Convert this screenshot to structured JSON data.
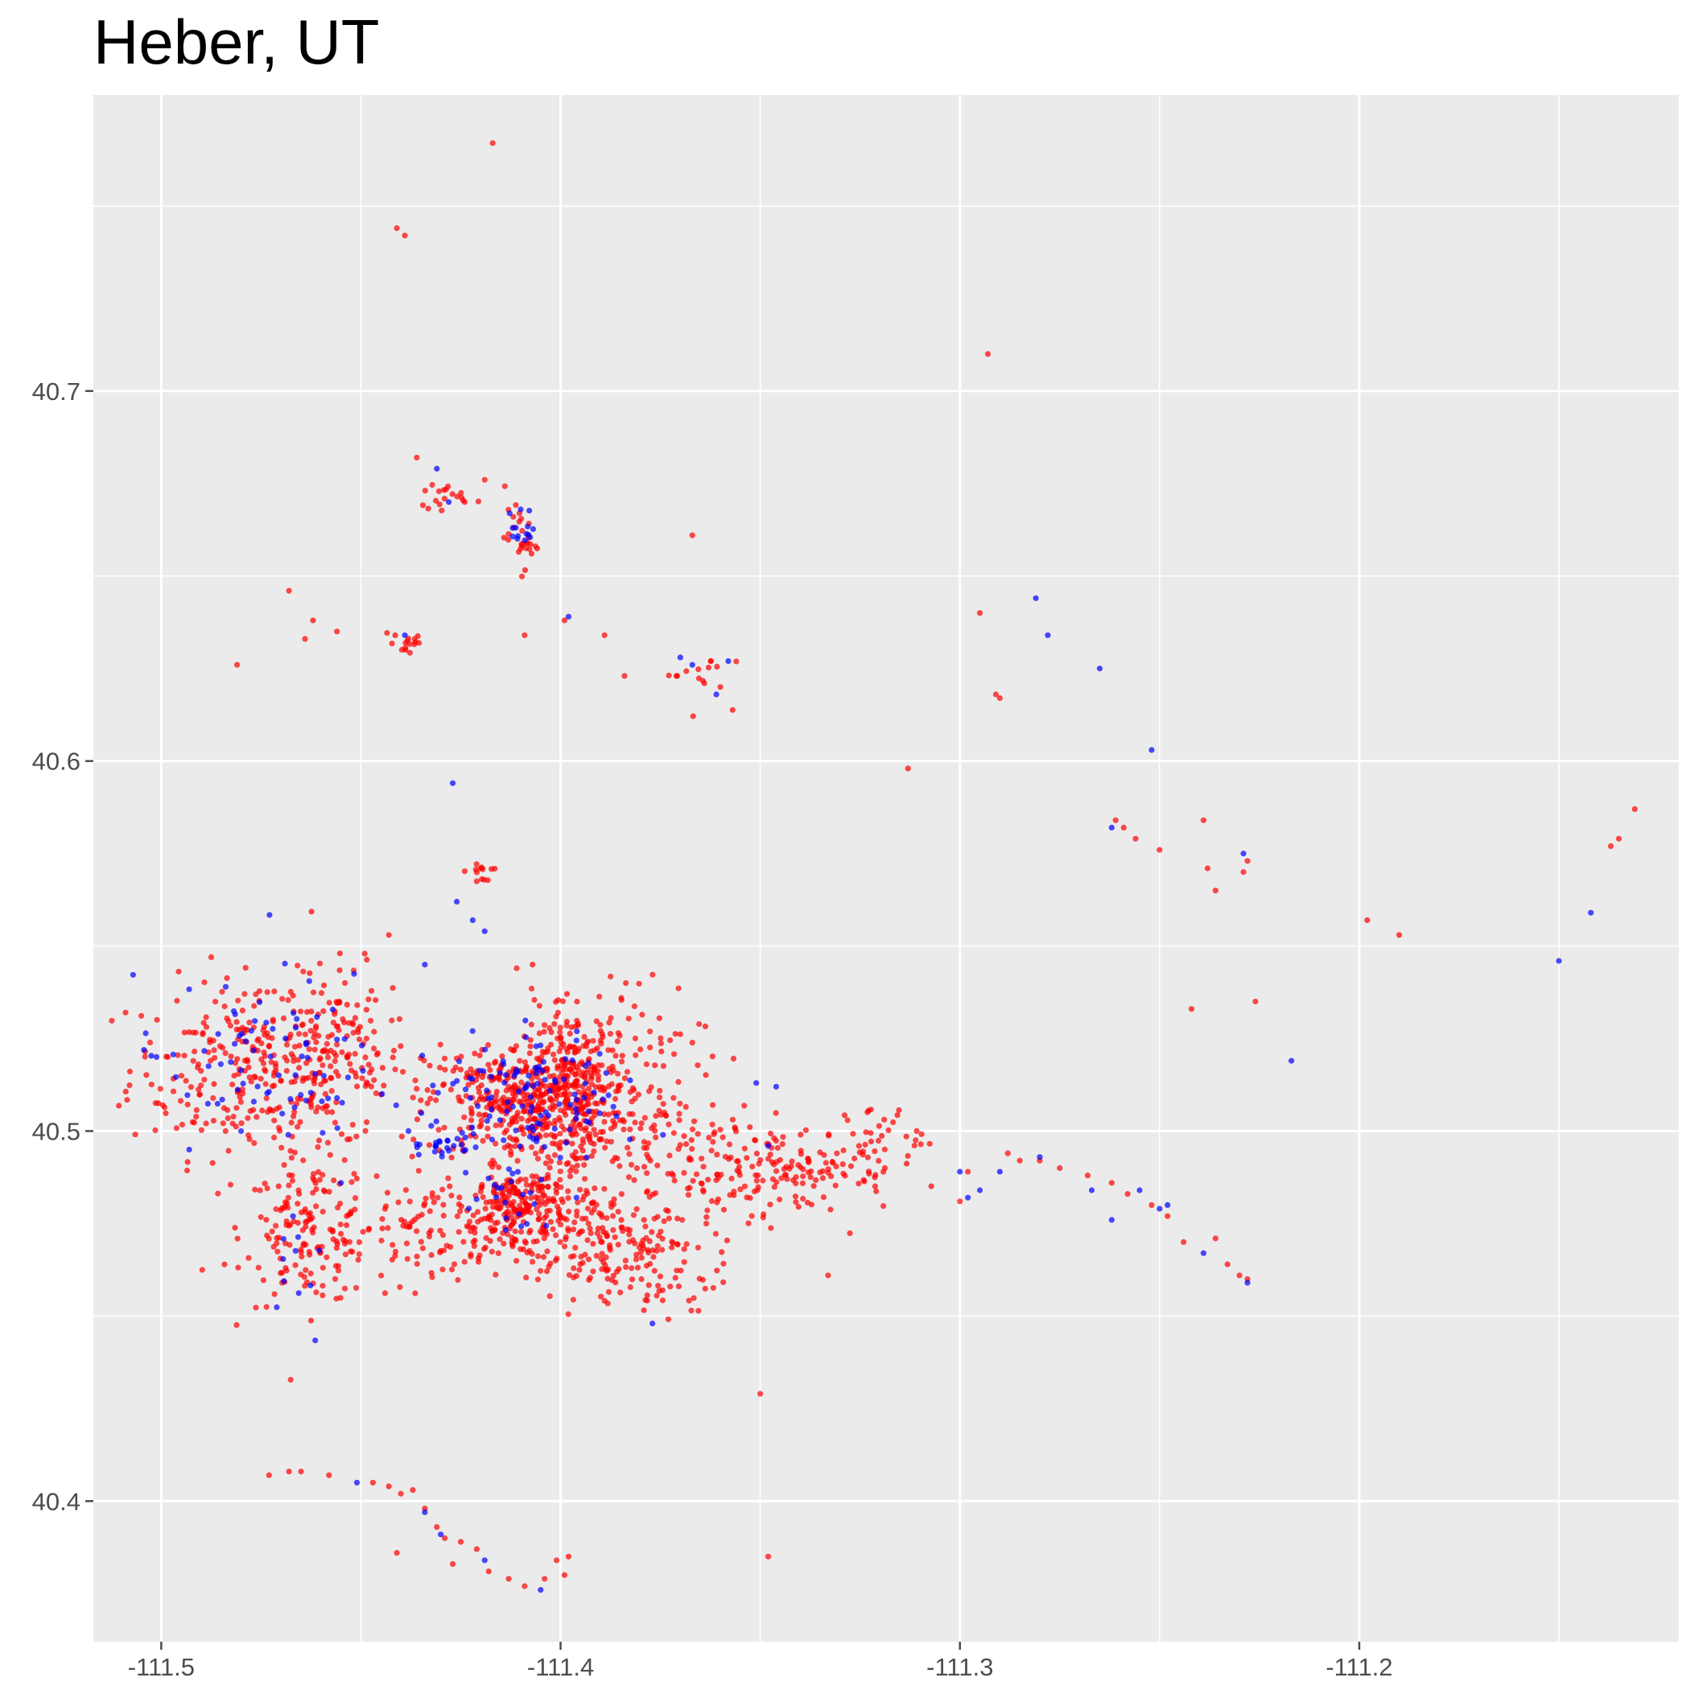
{
  "chart_data": {
    "type": "scatter",
    "title": "Heber, UT",
    "xlabel": "",
    "ylabel": "",
    "xlim": [
      -111.517,
      -111.12
    ],
    "ylim": [
      40.362,
      40.78
    ],
    "grid": true,
    "x_ticks": [
      -111.5,
      -111.4,
      -111.3,
      -111.2
    ],
    "x_tick_labels": [
      "-111.5",
      "-111.4",
      "-111.3",
      "-111.2"
    ],
    "y_ticks": [
      40.4,
      40.5,
      40.6,
      40.7
    ],
    "y_tick_labels": [
      "40.4",
      "40.5",
      "40.6",
      "40.7"
    ],
    "colors": {
      "panel": "#ebebeb",
      "grid": "#ffffff",
      "tick": "#4d4d4d",
      "red": "#ff0000",
      "blue": "#0000ff"
    },
    "series": [
      {
        "color": "#ff0000",
        "points": [
          [
            -111.417,
            40.767
          ],
          [
            -111.441,
            40.744
          ],
          [
            -111.439,
            40.742
          ],
          [
            -111.293,
            40.71
          ],
          [
            -111.436,
            40.682
          ],
          [
            -111.419,
            40.676
          ],
          [
            -111.367,
            40.661
          ],
          [
            -111.424,
            40.67
          ],
          [
            -111.468,
            40.646
          ],
          [
            -111.462,
            40.638
          ],
          [
            -111.456,
            40.635
          ],
          [
            -111.464,
            40.633
          ],
          [
            -111.481,
            40.626
          ],
          [
            -111.409,
            40.634
          ],
          [
            -111.399,
            40.638
          ],
          [
            -111.389,
            40.634
          ],
          [
            -111.384,
            40.623
          ],
          [
            -111.364,
            40.621
          ],
          [
            -111.36,
            40.62
          ],
          [
            -111.313,
            40.598
          ],
          [
            -111.295,
            40.64
          ],
          [
            -111.291,
            40.618
          ],
          [
            -111.29,
            40.617
          ],
          [
            -111.261,
            40.584
          ],
          [
            -111.259,
            40.582
          ],
          [
            -111.256,
            40.579
          ],
          [
            -111.25,
            40.576
          ],
          [
            -111.239,
            40.584
          ],
          [
            -111.238,
            40.571
          ],
          [
            -111.236,
            40.565
          ],
          [
            -111.229,
            40.57
          ],
          [
            -111.228,
            40.573
          ],
          [
            -111.226,
            40.535
          ],
          [
            -111.242,
            40.533
          ],
          [
            -111.198,
            40.557
          ],
          [
            -111.19,
            40.553
          ],
          [
            -111.131,
            40.587
          ],
          [
            -111.135,
            40.579
          ],
          [
            -111.137,
            40.577
          ],
          [
            -111.411,
            40.544
          ],
          [
            -111.407,
            40.545
          ],
          [
            -111.443,
            40.553
          ],
          [
            -111.454,
            40.54
          ],
          [
            -111.42,
            40.571
          ],
          [
            -111.3,
            40.481
          ],
          [
            -111.298,
            40.489
          ],
          [
            -111.288,
            40.494
          ],
          [
            -111.285,
            40.492
          ],
          [
            -111.28,
            40.492
          ],
          [
            -111.275,
            40.49
          ],
          [
            -111.268,
            40.488
          ],
          [
            -111.262,
            40.486
          ],
          [
            -111.258,
            40.483
          ],
          [
            -111.252,
            40.48
          ],
          [
            -111.248,
            40.477
          ],
          [
            -111.244,
            40.47
          ],
          [
            -111.236,
            40.471
          ],
          [
            -111.233,
            40.464
          ],
          [
            -111.23,
            40.461
          ],
          [
            -111.228,
            40.46
          ],
          [
            -111.35,
            40.429
          ],
          [
            -111.348,
            40.385
          ],
          [
            -111.333,
            40.461
          ],
          [
            -111.473,
            40.407
          ],
          [
            -111.468,
            40.408
          ],
          [
            -111.465,
            40.408
          ],
          [
            -111.458,
            40.407
          ],
          [
            -111.447,
            40.405
          ],
          [
            -111.443,
            40.404
          ],
          [
            -111.44,
            40.402
          ],
          [
            -111.437,
            40.403
          ],
          [
            -111.434,
            40.398
          ],
          [
            -111.431,
            40.393
          ],
          [
            -111.429,
            40.39
          ],
          [
            -111.425,
            40.389
          ],
          [
            -111.421,
            40.387
          ],
          [
            -111.418,
            40.381
          ],
          [
            -111.413,
            40.379
          ],
          [
            -111.409,
            40.377
          ],
          [
            -111.404,
            40.379
          ],
          [
            -111.401,
            40.384
          ],
          [
            -111.398,
            40.385
          ],
          [
            -111.441,
            40.386
          ],
          [
            -111.399,
            40.38
          ],
          [
            -111.427,
            40.383
          ]
        ]
      },
      {
        "color": "#0000ff",
        "points": [
          [
            -111.431,
            40.679
          ],
          [
            -111.428,
            40.67
          ],
          [
            -111.41,
            40.668
          ],
          [
            -111.412,
            40.663
          ],
          [
            -111.439,
            40.634
          ],
          [
            -111.398,
            40.639
          ],
          [
            -111.37,
            40.628
          ],
          [
            -111.367,
            40.626
          ],
          [
            -111.358,
            40.627
          ],
          [
            -111.361,
            40.618
          ],
          [
            -111.281,
            40.644
          ],
          [
            -111.278,
            40.634
          ],
          [
            -111.265,
            40.625
          ],
          [
            -111.252,
            40.603
          ],
          [
            -111.427,
            40.594
          ],
          [
            -111.262,
            40.582
          ],
          [
            -111.229,
            40.575
          ],
          [
            -111.217,
            40.519
          ],
          [
            -111.142,
            40.559
          ],
          [
            -111.15,
            40.546
          ],
          [
            -111.426,
            40.562
          ],
          [
            -111.422,
            40.557
          ],
          [
            -111.419,
            40.554
          ],
          [
            -111.434,
            40.545
          ],
          [
            -111.3,
            40.489
          ],
          [
            -111.298,
            40.482
          ],
          [
            -111.295,
            40.484
          ],
          [
            -111.29,
            40.489
          ],
          [
            -111.28,
            40.493
          ],
          [
            -111.267,
            40.484
          ],
          [
            -111.262,
            40.476
          ],
          [
            -111.255,
            40.484
          ],
          [
            -111.25,
            40.479
          ],
          [
            -111.248,
            40.48
          ],
          [
            -111.239,
            40.467
          ],
          [
            -111.228,
            40.459
          ],
          [
            -111.346,
            40.512
          ],
          [
            -111.351,
            40.513
          ],
          [
            -111.408,
            40.515
          ],
          [
            -111.43,
            40.391
          ],
          [
            -111.434,
            40.397
          ],
          [
            -111.419,
            40.384
          ],
          [
            -111.405,
            40.376
          ],
          [
            -111.451,
            40.405
          ],
          [
            -111.348,
            40.496
          ],
          [
            -111.386,
            40.504
          ],
          [
            -111.377,
            40.448
          ],
          [
            -111.396,
            40.482
          ],
          [
            -111.455,
            40.486
          ],
          [
            -111.467,
            40.477
          ],
          [
            -111.48,
            40.5
          ],
          [
            -111.493,
            40.495
          ]
        ]
      }
    ],
    "clusters": [
      {
        "color": "#ff0000",
        "count": 260,
        "center": [
          -111.478,
          40.517
        ],
        "spread": [
          0.015,
          0.012
        ]
      },
      {
        "color": "#ff0000",
        "count": 150,
        "center": [
          -111.458,
          40.52
        ],
        "spread": [
          0.01,
          0.012
        ]
      },
      {
        "color": "#ff0000",
        "count": 140,
        "center": [
          -111.463,
          40.473
        ],
        "spread": [
          0.008,
          0.01
        ]
      },
      {
        "color": "#ff0000",
        "count": 400,
        "center": [
          -111.41,
          40.508
        ],
        "spread": [
          0.012,
          0.008
        ]
      },
      {
        "color": "#ff0000",
        "count": 220,
        "center": [
          -111.397,
          40.513
        ],
        "spread": [
          0.006,
          0.01
        ]
      },
      {
        "color": "#ff0000",
        "count": 160,
        "center": [
          -111.41,
          40.48
        ],
        "spread": [
          0.006,
          0.005
        ]
      },
      {
        "color": "#ff0000",
        "count": 160,
        "center": [
          -111.39,
          40.472
        ],
        "spread": [
          0.014,
          0.008
        ]
      },
      {
        "color": "#ff0000",
        "count": 180,
        "center": [
          -111.43,
          40.473
        ],
        "spread": [
          0.018,
          0.007
        ]
      },
      {
        "color": "#ff0000",
        "count": 140,
        "center": [
          -111.37,
          40.494
        ],
        "spread": [
          0.015,
          0.01
        ]
      },
      {
        "color": "#ff0000",
        "count": 120,
        "center": [
          -111.34,
          40.49
        ],
        "spread": [
          0.012,
          0.006
        ]
      },
      {
        "color": "#ff0000",
        "count": 80,
        "center": [
          -111.383,
          40.52
        ],
        "spread": [
          0.01,
          0.012
        ]
      },
      {
        "color": "#ff0000",
        "count": 60,
        "center": [
          -111.378,
          40.462
        ],
        "spread": [
          0.01,
          0.007
        ]
      },
      {
        "color": "#ff0000",
        "count": 30,
        "center": [
          -111.32,
          40.499
        ],
        "spread": [
          0.005,
          0.004
        ]
      },
      {
        "color": "#ff0000",
        "count": 30,
        "center": [
          -111.41,
          40.66
        ],
        "spread": [
          0.002,
          0.004
        ]
      },
      {
        "color": "#ff0000",
        "count": 18,
        "center": [
          -111.429,
          40.671
        ],
        "spread": [
          0.003,
          0.002
        ]
      },
      {
        "color": "#ff0000",
        "count": 16,
        "center": [
          -111.439,
          40.632
        ],
        "spread": [
          0.003,
          0.002
        ]
      },
      {
        "color": "#ff0000",
        "count": 12,
        "center": [
          -111.42,
          40.57
        ],
        "spread": [
          0.002,
          0.002
        ]
      },
      {
        "color": "#ff0000",
        "count": 14,
        "center": [
          -111.366,
          40.624
        ],
        "spread": [
          0.004,
          0.004
        ]
      },
      {
        "color": "#0000ff",
        "count": 90,
        "center": [
          -111.414,
          40.508
        ],
        "spread": [
          0.012,
          0.009
        ]
      },
      {
        "color": "#0000ff",
        "count": 60,
        "center": [
          -111.478,
          40.519
        ],
        "spread": [
          0.014,
          0.011
        ]
      },
      {
        "color": "#0000ff",
        "count": 30,
        "center": [
          -111.397,
          40.513
        ],
        "spread": [
          0.006,
          0.009
        ]
      },
      {
        "color": "#0000ff",
        "count": 25,
        "center": [
          -111.43,
          40.497
        ],
        "spread": [
          0.004,
          0.003
        ]
      },
      {
        "color": "#0000ff",
        "count": 20,
        "center": [
          -111.412,
          40.481
        ],
        "spread": [
          0.005,
          0.004
        ]
      },
      {
        "color": "#0000ff",
        "count": 15,
        "center": [
          -111.457,
          40.52
        ],
        "spread": [
          0.008,
          0.01
        ]
      },
      {
        "color": "#0000ff",
        "count": 12,
        "center": [
          -111.41,
          40.661
        ],
        "spread": [
          0.002,
          0.004
        ]
      },
      {
        "color": "#0000ff",
        "count": 10,
        "center": [
          -111.462,
          40.468
        ],
        "spread": [
          0.006,
          0.008
        ]
      }
    ]
  }
}
